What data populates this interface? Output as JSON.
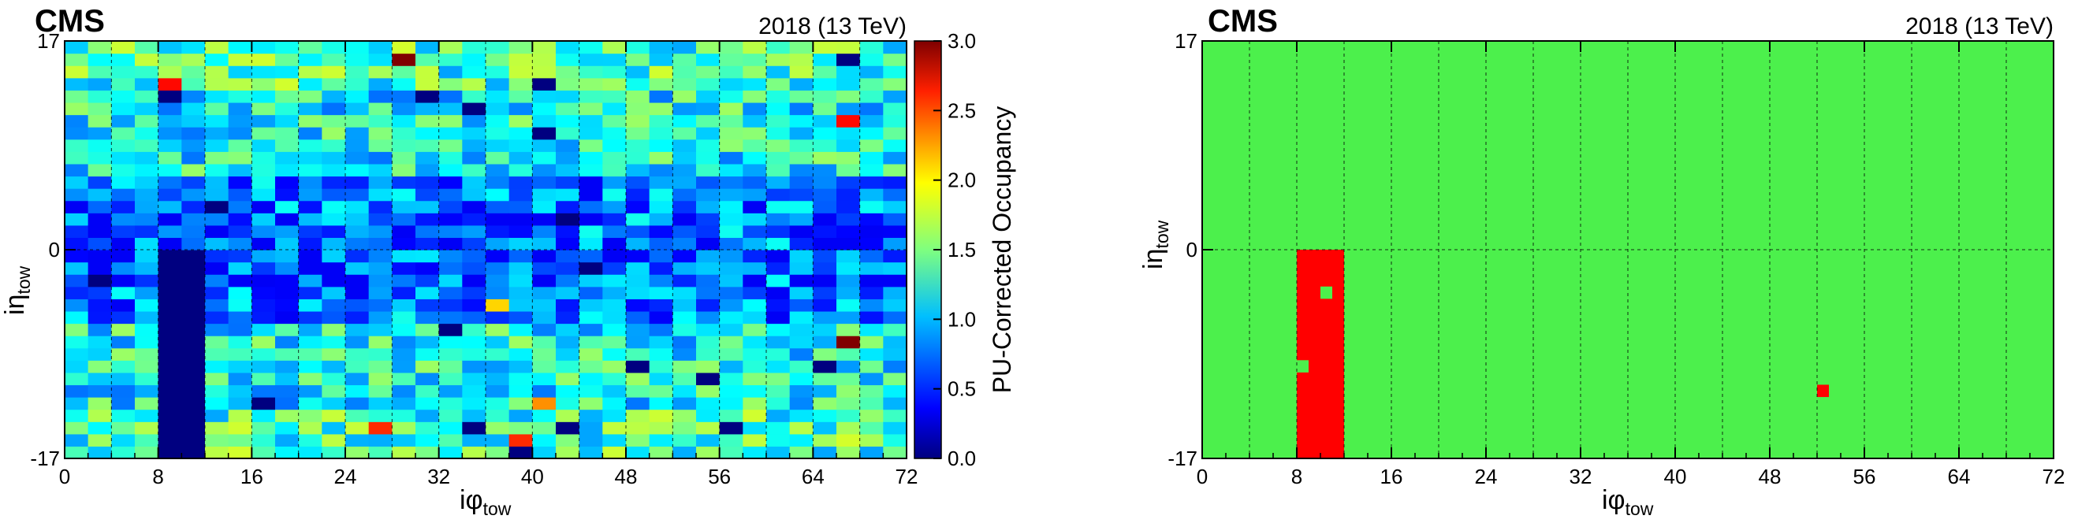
{
  "chart_data": [
    {
      "type": "heatmap",
      "experiment": "CMS",
      "run_label": "2018 (13 TeV)",
      "xlabel_main": "iφ",
      "xlabel_sub": "tow",
      "ylabel_main": "iη",
      "ylabel_sub": "tow",
      "xlim": [
        0,
        72
      ],
      "ylim": [
        -17,
        17
      ],
      "x_ticks": [
        0,
        8,
        16,
        24,
        32,
        40,
        48,
        56,
        64,
        72
      ],
      "x_tick_labels": [
        "0",
        "8",
        "16",
        "24",
        "32",
        "40",
        "48",
        "56",
        "64",
        "72"
      ],
      "y_ticks": [
        -17,
        0,
        17
      ],
      "y_tick_labels": [
        "-17",
        "0",
        "17"
      ],
      "grid": "vertical dashed lines every 4 iφ, horizontal dashed line at iη = 0",
      "colorbar": {
        "label": "PU-Corrected Occupancy",
        "range": [
          0.0,
          3.0
        ],
        "ticks": [
          0.0,
          0.5,
          1.0,
          1.5,
          2.0,
          2.5,
          3.0
        ],
        "tick_labels": [
          "0.0",
          "0.5",
          "1.0",
          "1.5",
          "2.0",
          "2.5",
          "3.0"
        ],
        "colormap": "jet"
      },
      "cell_size": [
        2,
        1
      ],
      "description_of_values": "approx. 1.0 typical occupancy; lower band (~0.5) near iη = 0; dead region 0.0 at iφ 8–12, iη −17–0",
      "dead_region": {
        "x": [
          8,
          12
        ],
        "y": [
          -17,
          0
        ],
        "value": 0.0
      },
      "hot_cells": [
        {
          "x": 29,
          "y": 15,
          "value": 3.0
        },
        {
          "x": 67,
          "y": -8,
          "value": 3.0
        },
        {
          "x": 9,
          "y": 13,
          "value": 2.6
        },
        {
          "x": 66,
          "y": 10,
          "value": 2.6
        },
        {
          "x": 26,
          "y": -15,
          "value": 2.5
        },
        {
          "x": 39,
          "y": -16,
          "value": 2.5
        },
        {
          "x": 40,
          "y": -13,
          "value": 2.2
        },
        {
          "x": 37,
          "y": -5,
          "value": 2.0
        }
      ],
      "cold_cells": [
        {
          "x": 33,
          "y": 17,
          "value": 0.0
        },
        {
          "x": 71,
          "y": 17,
          "value": 0.0
        },
        {
          "x": 67,
          "y": 15,
          "value": 0.0
        },
        {
          "x": 9,
          "y": 12,
          "value": 0.0
        },
        {
          "x": 35,
          "y": 11,
          "value": 0.0
        },
        {
          "x": 31,
          "y": 12,
          "value": 0.0
        },
        {
          "x": 41,
          "y": 13,
          "value": 0.0
        },
        {
          "x": 3,
          "y": -3,
          "value": 0.0
        },
        {
          "x": 33,
          "y": -7,
          "value": 0.0
        },
        {
          "x": 49,
          "y": -10,
          "value": 0.0
        },
        {
          "x": 45,
          "y": -2,
          "value": 0.0
        },
        {
          "x": 42,
          "y": 2,
          "value": 0.0
        },
        {
          "x": 65,
          "y": -10,
          "value": 0.0
        },
        {
          "x": 54,
          "y": -11,
          "value": 0.0
        },
        {
          "x": 16,
          "y": -13,
          "value": 0.0
        },
        {
          "x": 34,
          "y": -15,
          "value": 0.0
        },
        {
          "x": 57,
          "y": -15,
          "value": 0.0
        },
        {
          "x": 38,
          "y": -17,
          "value": 0.0
        },
        {
          "x": 43,
          "y": -15,
          "value": 0.0
        },
        {
          "x": 13,
          "y": 3,
          "value": 0.0
        },
        {
          "x": 41,
          "y": 9,
          "value": 0.0
        }
      ]
    },
    {
      "type": "heatmap",
      "experiment": "CMS",
      "run_label": "2018 (13 TeV)",
      "xlabel_main": "iφ",
      "xlabel_sub": "tow",
      "ylabel_main": "iη",
      "ylabel_sub": "tow",
      "xlim": [
        0,
        72
      ],
      "ylim": [
        -17,
        17
      ],
      "x_ticks": [
        0,
        8,
        16,
        24,
        32,
        40,
        48,
        56,
        64,
        72
      ],
      "x_tick_labels": [
        "0",
        "8",
        "16",
        "24",
        "32",
        "40",
        "48",
        "56",
        "64",
        "72"
      ],
      "y_ticks": [
        -17,
        0,
        17
      ],
      "y_tick_labels": [
        "-17",
        "0",
        "17"
      ],
      "grid": "vertical dashed lines every 4 iφ, horizontal dashed line at iη = 0",
      "colors": {
        "good": "#4cf04c",
        "flagged": "#ff0000"
      },
      "background_status": "good",
      "flagged_regions": [
        {
          "x": [
            8,
            12
          ],
          "y": [
            -17,
            0
          ],
          "status": "flagged"
        },
        {
          "x": [
            52,
            53
          ],
          "y": [
            -12,
            -11
          ],
          "status": "flagged"
        }
      ],
      "good_cells_inside_flagged": [
        {
          "x": [
            10,
            11
          ],
          "y": [
            -4,
            -3
          ]
        },
        {
          "x": [
            8,
            9
          ],
          "y": [
            -10,
            -9
          ]
        }
      ]
    }
  ]
}
